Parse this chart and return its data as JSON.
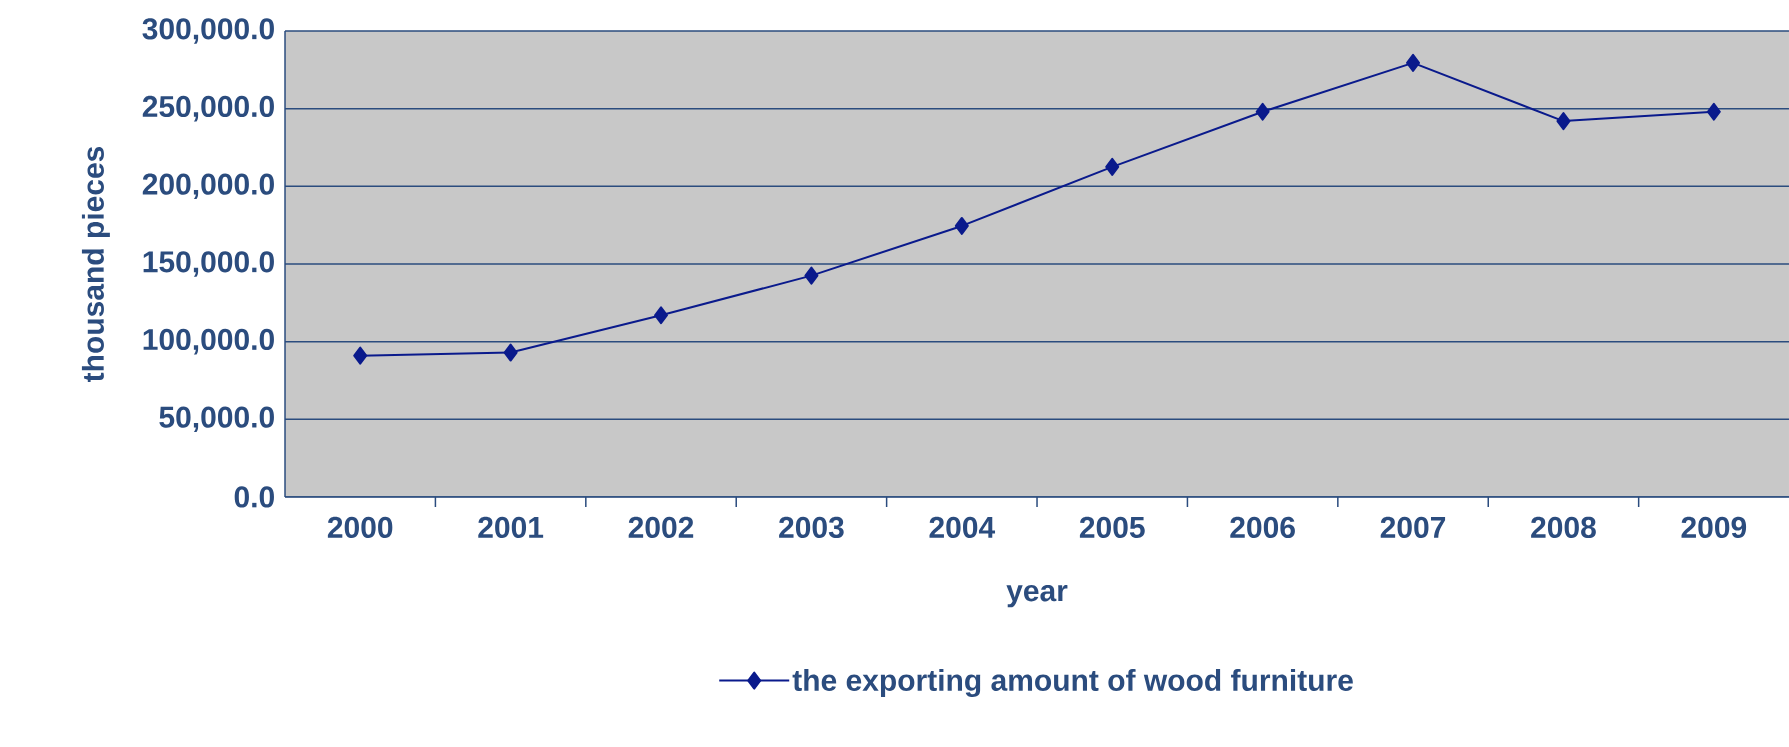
{
  "chart_data": {
    "type": "line",
    "xlabel": "year",
    "ylabel": "thousand pieces",
    "categories": [
      "2000",
      "2001",
      "2002",
      "2003",
      "2004",
      "2005",
      "2006",
      "2007",
      "2008",
      "2009"
    ],
    "series": [
      {
        "name": "the exporting amount of wood furniture",
        "color": "#0a1a8c",
        "values": [
          91000,
          93000,
          117000,
          142500,
          174500,
          212500,
          248000,
          279500,
          242000,
          248000
        ]
      }
    ],
    "ylim": [
      0,
      300000
    ],
    "yticks": [
      {
        "value": 0,
        "label": "0.0"
      },
      {
        "value": 50000,
        "label": "50,000.0"
      },
      {
        "value": 100000,
        "label": "100,000.0"
      },
      {
        "value": 150000,
        "label": "150,000.0"
      },
      {
        "value": 200000,
        "label": "200,000.0"
      },
      {
        "value": 250000,
        "label": "250,000.0"
      },
      {
        "value": 300000,
        "label": "300,000.0"
      }
    ],
    "grid": "y",
    "legend": "bottom",
    "marker": "diamond",
    "line_style": "solid"
  }
}
